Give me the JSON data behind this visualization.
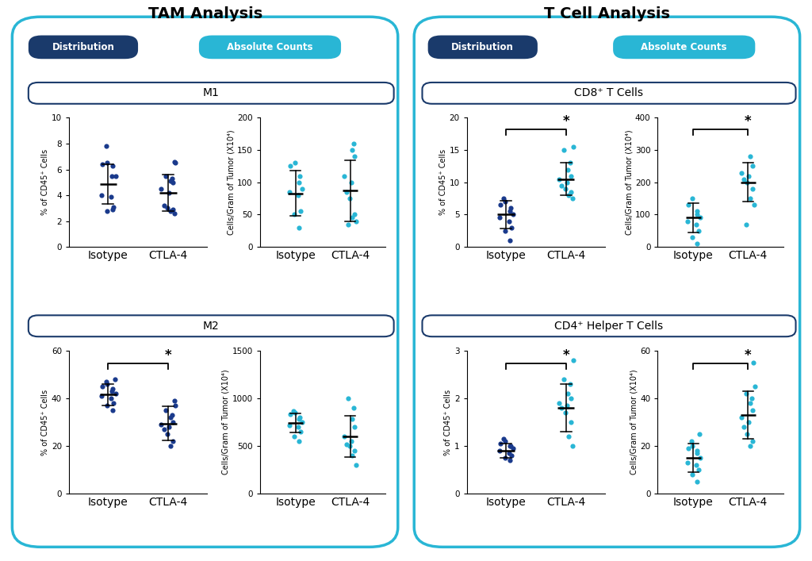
{
  "dark_blue": "#1a3a6b",
  "light_blue": "#29b6d5",
  "border_blue": "#2e6da4",
  "dot_dark": "#1a3a8c",
  "dot_light": "#29b6d5",
  "tam_title": "TAM Analysis",
  "tcell_title": "T Cell Analysis",
  "m1_title": "M1",
  "m2_title": "M2",
  "cd8_title": "CD8⁺ T Cells",
  "cd4_title": "CD4⁺ Helper T Cells",
  "dist_label": "Distribution",
  "abs_label": "Absolute Counts",
  "xticklabels": [
    "Isotype",
    "CTLA-4"
  ],
  "m1_dist_isotype": [
    2.9,
    2.8,
    3.1,
    3.9,
    4.0,
    5.5,
    5.5,
    6.3,
    6.4,
    6.5,
    7.8
  ],
  "m1_dist_ctla4": [
    2.6,
    2.8,
    2.9,
    3.0,
    3.2,
    4.2,
    4.5,
    5.0,
    5.1,
    5.3,
    5.5,
    6.5,
    6.6
  ],
  "m1_dist_isotype_mean": 4.85,
  "m1_dist_isotype_sd": 1.55,
  "m1_dist_ctla4_mean": 4.2,
  "m1_dist_ctla4_sd": 1.4,
  "m1_abs_isotype": [
    30,
    50,
    55,
    80,
    85,
    90,
    100,
    110,
    125,
    130
  ],
  "m1_abs_ctla4": [
    35,
    40,
    45,
    50,
    75,
    85,
    100,
    110,
    140,
    150,
    160
  ],
  "m1_abs_isotype_mean": 83,
  "m1_abs_isotype_sd": 35,
  "m1_abs_ctla4_mean": 87,
  "m1_abs_ctla4_sd": 47,
  "m2_dist_isotype": [
    35,
    37,
    38,
    40,
    41,
    42,
    43,
    44,
    45,
    46,
    47,
    48
  ],
  "m2_dist_ctla4": [
    20,
    22,
    25,
    27,
    28,
    29,
    30,
    32,
    33,
    35,
    37,
    39
  ],
  "m2_dist_isotype_mean": 41.5,
  "m2_dist_isotype_sd": 4.5,
  "m2_dist_ctla4_mean": 29.5,
  "m2_dist_ctla4_sd": 7.0,
  "m2_abs_isotype": [
    550,
    600,
    650,
    700,
    720,
    750,
    780,
    800,
    830,
    850,
    870
  ],
  "m2_abs_ctla4": [
    300,
    400,
    450,
    500,
    520,
    550,
    600,
    700,
    780,
    900,
    1000
  ],
  "m2_abs_isotype_mean": 740,
  "m2_abs_isotype_sd": 100,
  "m2_abs_ctla4_mean": 600,
  "m2_abs_ctla4_sd": 220,
  "cd8_dist_isotype": [
    1.0,
    2.5,
    3.0,
    4.0,
    4.5,
    5.0,
    5.5,
    6.0,
    6.5,
    7.0,
    7.5
  ],
  "cd8_dist_ctla4": [
    7.5,
    8.0,
    8.5,
    9.0,
    9.5,
    10.0,
    10.5,
    11.0,
    12.0,
    13.0,
    15.0,
    15.5
  ],
  "cd8_dist_isotype_mean": 5.0,
  "cd8_dist_isotype_sd": 2.2,
  "cd8_dist_ctla4_mean": 10.5,
  "cd8_dist_ctla4_sd": 2.5,
  "cd8_abs_isotype": [
    10,
    30,
    50,
    70,
    80,
    90,
    100,
    110,
    130,
    150
  ],
  "cd8_abs_ctla4": [
    70,
    130,
    150,
    180,
    200,
    210,
    220,
    230,
    250,
    280
  ],
  "cd8_abs_isotype_mean": 90,
  "cd8_abs_isotype_sd": 45,
  "cd8_abs_ctla4_mean": 200,
  "cd8_abs_ctla4_sd": 60,
  "cd4_dist_isotype": [
    0.7,
    0.75,
    0.8,
    0.85,
    0.9,
    0.95,
    1.0,
    1.0,
    1.05,
    1.1,
    1.15
  ],
  "cd4_dist_ctla4": [
    1.0,
    1.2,
    1.5,
    1.7,
    1.8,
    1.85,
    1.9,
    2.0,
    2.1,
    2.3,
    2.4,
    2.8
  ],
  "cd4_dist_isotype_mean": 0.9,
  "cd4_dist_isotype_sd": 0.15,
  "cd4_dist_ctla4_mean": 1.8,
  "cd4_dist_ctla4_sd": 0.5,
  "cd4_abs_isotype": [
    5,
    8,
    10,
    12,
    13,
    15,
    17,
    18,
    19,
    20,
    22,
    25
  ],
  "cd4_abs_ctla4": [
    20,
    22,
    25,
    28,
    30,
    32,
    35,
    38,
    40,
    42,
    45,
    55
  ],
  "cd4_abs_isotype_mean": 15,
  "cd4_abs_isotype_sd": 6,
  "cd4_abs_ctla4_mean": 33,
  "cd4_abs_ctla4_sd": 10
}
